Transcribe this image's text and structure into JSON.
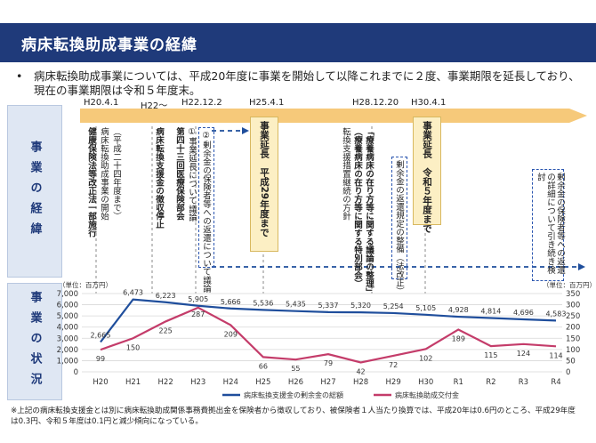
{
  "header": {
    "title": "病床転換助成事業の経緯"
  },
  "intro": {
    "bullet": "•",
    "text": "病床転換助成事業については、平成20年度に事業を開始して以降これまでに２度、事業期限を延長しており、現在の事業期限は令和５年度末。"
  },
  "sections": {
    "history_label": "事業の経緯",
    "status_label": "事業の状況"
  },
  "timeline": {
    "dates": [
      "H20.4.1",
      "H22〜",
      "H22.12.2",
      "H25.4.1",
      "H28.12.20",
      "H30.4.1"
    ],
    "events": {
      "e1_bold": "健康保険法等改正法一部施行",
      "e1_a": "病床転換助成事業の開始",
      "e1_b": "（平成二十四年度まで）",
      "e2": "病床転換支援金の徴収停止",
      "e3": "第四十三回医療保険部会",
      "e4_a": "①事業延長について議論",
      "e4_b": "②剰余金の保険者等への返還について議論",
      "ext1_a": "事業延長",
      "ext1_b": "平成29年度まで",
      "e6_a": "転換支援措置継続の方針",
      "e6_b": "（療養病床の在り方等に関する特別部会）",
      "e6_c": "「療養病床の在り方等に関する議論の整理」",
      "e7": "剰余金の返還規定の整備（法改正）",
      "ext2_a": "事業延長",
      "ext2_b": "令和５年度まで",
      "e8": "剰余金の保険者等への返還の詳細について引き続き検討"
    }
  },
  "chart_data": {
    "type": "line",
    "categories": [
      "H20",
      "H21",
      "H22",
      "H23",
      "H24",
      "H25",
      "H26",
      "H27",
      "H28",
      "H29",
      "H30",
      "R1",
      "R2",
      "R3",
      "R4"
    ],
    "unit_left": "（単位：百万円）",
    "unit_right": "（単位：百万円）",
    "y_left": {
      "min": 0,
      "max": 7000,
      "ticks": [
        "0",
        "1,000",
        "2,000",
        "3,000",
        "4,000",
        "5,000",
        "6,000",
        "7,000"
      ]
    },
    "y_right": {
      "min": 0,
      "max": 350,
      "ticks": [
        "0",
        "50",
        "100",
        "150",
        "200",
        "250",
        "300",
        "350"
      ]
    },
    "series": [
      {
        "name": "病床転換支援金の剰余金の総額",
        "axis": "left",
        "color": "#1f4e9c",
        "values": [
          2665,
          6473,
          6223,
          5905,
          5666,
          5536,
          5435,
          5337,
          5320,
          5254,
          5105,
          4928,
          4814,
          4696,
          4583
        ],
        "labels": [
          "2,665",
          "6,473",
          "6,223",
          "5,905",
          "5,666",
          "5,536",
          "5,435",
          "5,337",
          "5,320",
          "5,254",
          "5,105",
          "4,928",
          "4,814",
          "4,696",
          "4,583"
        ]
      },
      {
        "name": "病床転換助成交付金",
        "axis": "right",
        "color": "#c43c6a",
        "values": [
          99,
          150,
          225,
          287,
          209,
          66,
          55,
          79,
          42,
          72,
          102,
          189,
          115,
          124,
          114
        ],
        "labels": [
          "99",
          "150",
          "225",
          "287",
          "209",
          "66",
          "55",
          "79",
          "42",
          "72",
          "102",
          "189",
          "115",
          "124",
          "114"
        ]
      }
    ]
  },
  "footnote": "※上記の病床転換支援金とは別に病床転換助成関係事務費拠出金を保険者から徴収しており、被保険者１人当たり換算では、平成20年は0.6円のところ、平成29年度は0.3円、令和５年度は0.1円と減少傾向になっている。",
  "colors": {
    "navy": "#1f3a7a",
    "arrow": "#f6c97a",
    "blue_line": "#1f4e9c",
    "pink_line": "#c43c6a"
  }
}
